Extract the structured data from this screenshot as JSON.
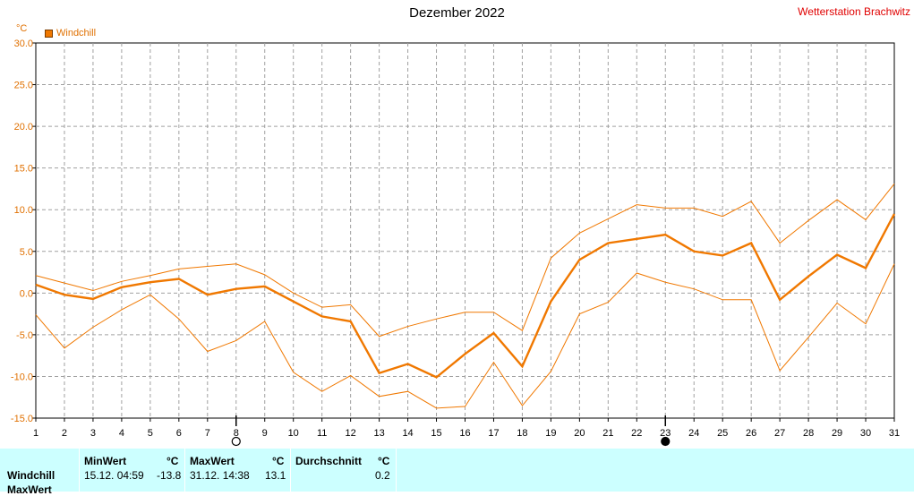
{
  "header": {
    "title": "Dezember 2022",
    "station": "Wetterstation Brachwitz",
    "unit": "°C",
    "legend_label": "Windchill"
  },
  "colors": {
    "series": "#f07800",
    "grid": "#a0a0a0",
    "station": "#e00000",
    "stats_bg": "#ccffff"
  },
  "chart_data": {
    "type": "line",
    "title": "Dezember 2022",
    "ylabel": "°C",
    "xlabel": "",
    "x": [
      1,
      2,
      3,
      4,
      5,
      6,
      7,
      8,
      9,
      10,
      11,
      12,
      13,
      14,
      15,
      16,
      17,
      18,
      19,
      20,
      21,
      22,
      23,
      24,
      25,
      26,
      27,
      28,
      29,
      30,
      31
    ],
    "xlim": [
      1,
      31
    ],
    "ylim": [
      -15,
      30
    ],
    "yticks": [
      "30.0",
      "25.0",
      "20.0",
      "15.0",
      "10.0",
      "5.0",
      "0.0",
      "-5.0",
      "-10.0",
      "-15.0"
    ],
    "grid": true,
    "legend": "top-left",
    "series": [
      {
        "name": "Windchill",
        "role": "avg",
        "values": [
          1.0,
          -0.2,
          -0.7,
          0.7,
          1.3,
          1.7,
          -0.2,
          0.5,
          0.8,
          -1.0,
          -2.8,
          -3.4,
          -9.6,
          -8.5,
          -10.1,
          -7.3,
          -4.8,
          -8.8,
          -1.0,
          4.0,
          6.0,
          6.5,
          7.0,
          5.0,
          4.5,
          6.0,
          -0.8,
          2.0,
          4.6,
          3.0,
          9.5
        ]
      },
      {
        "role": "max",
        "values": [
          2.1,
          1.2,
          0.3,
          1.4,
          2.1,
          2.9,
          3.2,
          3.5,
          2.2,
          0.0,
          -1.7,
          -1.4,
          -5.2,
          -4.0,
          -3.1,
          -2.3,
          -2.3,
          -4.5,
          4.2,
          7.2,
          8.9,
          10.6,
          10.2,
          10.2,
          9.2,
          11.0,
          6.0,
          8.7,
          11.2,
          8.8,
          13.1
        ]
      },
      {
        "role": "min",
        "values": [
          -2.6,
          -6.6,
          -4.1,
          -2.0,
          -0.2,
          -3.1,
          -7.0,
          -5.7,
          -3.4,
          -9.5,
          -11.8,
          -9.9,
          -12.4,
          -11.8,
          -13.8,
          -13.6,
          -8.3,
          -13.5,
          -9.4,
          -2.5,
          -1.1,
          2.4,
          1.3,
          0.5,
          -0.8,
          -0.8,
          -9.3,
          -5.3,
          -1.2,
          -3.7,
          3.5
        ]
      }
    ]
  },
  "moon": [
    {
      "day": 8,
      "phase": "full"
    },
    {
      "day": 23,
      "phase": "new"
    }
  ],
  "stats": {
    "row_label": "Windchill",
    "row_label2": "MaxWert",
    "min_header": "MinWert",
    "min_unit": "°C",
    "min_date": "15.12.  04:59",
    "min_value": "-13.8",
    "max_header": "MaxWert",
    "max_unit": "°C",
    "max_date": "31.12.  14:38",
    "max_value": "13.1",
    "avg_header": "Durchschnitt",
    "avg_unit": "°C",
    "avg_value": "0.2"
  }
}
